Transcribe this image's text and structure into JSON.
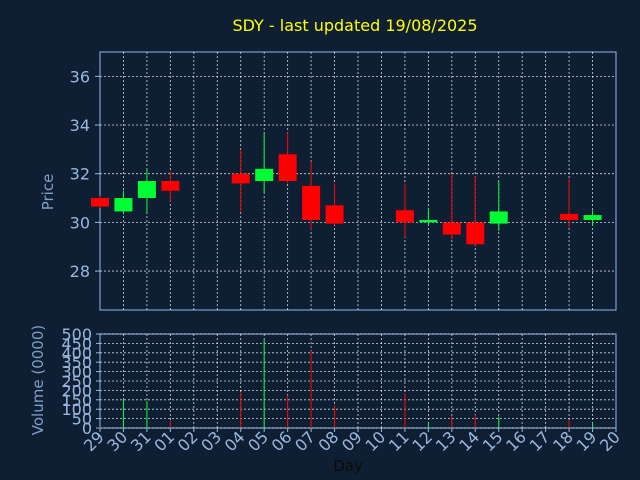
{
  "chart_data": {
    "type": "candlestick",
    "title": "SDY - last updated 19/08/2025",
    "xlabel": "Day",
    "ylabel_price": "Price",
    "ylabel_volume": "Volume (0000)",
    "x_ticks": [
      "29",
      "30",
      "31",
      "01",
      "02",
      "03",
      "04",
      "05",
      "06",
      "07",
      "08",
      "09",
      "10",
      "11",
      "12",
      "13",
      "14",
      "15",
      "16",
      "17",
      "18",
      "19",
      "20"
    ],
    "price_ylim": [
      26.4,
      37.0
    ],
    "price_yticks": [
      28,
      30,
      32,
      34,
      36
    ],
    "volume_ylim": [
      0,
      500
    ],
    "volume_yticks": [
      0,
      50,
      100,
      150,
      200,
      250,
      300,
      350,
      400,
      450,
      500
    ],
    "grid": true,
    "up_color": "#00ff33",
    "down_color": "#ff0000",
    "background": "#0f1f33",
    "axis_color": "#8fb8e8",
    "title_color": "#ffff00",
    "candles": [
      {
        "day": "29",
        "open": 31.0,
        "high": 31.1,
        "low": 30.6,
        "close": 30.65,
        "volume": 5
      },
      {
        "day": "30",
        "open": 30.45,
        "high": 31.3,
        "low": 30.4,
        "close": 31.0,
        "volume": 150
      },
      {
        "day": "31",
        "open": 31.0,
        "high": 32.2,
        "low": 30.4,
        "close": 31.7,
        "volume": 145
      },
      {
        "day": "01",
        "open": 31.7,
        "high": 32.1,
        "low": 30.85,
        "close": 31.3,
        "volume": 40
      },
      {
        "day": "04",
        "open": 32.0,
        "high": 33.0,
        "low": 30.45,
        "close": 31.6,
        "volume": 190
      },
      {
        "day": "05",
        "open": 31.7,
        "high": 33.7,
        "low": 31.2,
        "close": 32.2,
        "volume": 470
      },
      {
        "day": "06",
        "open": 32.8,
        "high": 33.7,
        "low": 31.6,
        "close": 31.7,
        "volume": 175
      },
      {
        "day": "07",
        "open": 31.5,
        "high": 32.5,
        "low": 29.7,
        "close": 30.1,
        "volume": 410
      },
      {
        "day": "08",
        "open": 30.7,
        "high": 31.6,
        "low": 29.9,
        "close": 29.95,
        "volume": 120
      },
      {
        "day": "11",
        "open": 30.5,
        "high": 31.6,
        "low": 29.4,
        "close": 30.0,
        "volume": 185
      },
      {
        "day": "12",
        "open": 30.0,
        "high": 30.6,
        "low": 29.9,
        "close": 30.1,
        "volume": 30
      },
      {
        "day": "13",
        "open": 30.0,
        "high": 32.0,
        "low": 29.3,
        "close": 29.5,
        "volume": 65
      },
      {
        "day": "14",
        "open": 30.0,
        "high": 31.9,
        "low": 29.05,
        "close": 29.1,
        "volume": 70
      },
      {
        "day": "15",
        "open": 29.95,
        "high": 31.7,
        "low": 29.65,
        "close": 30.45,
        "volume": 60
      },
      {
        "day": "18",
        "open": 30.35,
        "high": 31.8,
        "low": 29.8,
        "close": 30.1,
        "volume": 40
      },
      {
        "day": "19",
        "open": 30.1,
        "high": 30.5,
        "low": 29.85,
        "close": 30.3,
        "volume": 25
      }
    ]
  }
}
